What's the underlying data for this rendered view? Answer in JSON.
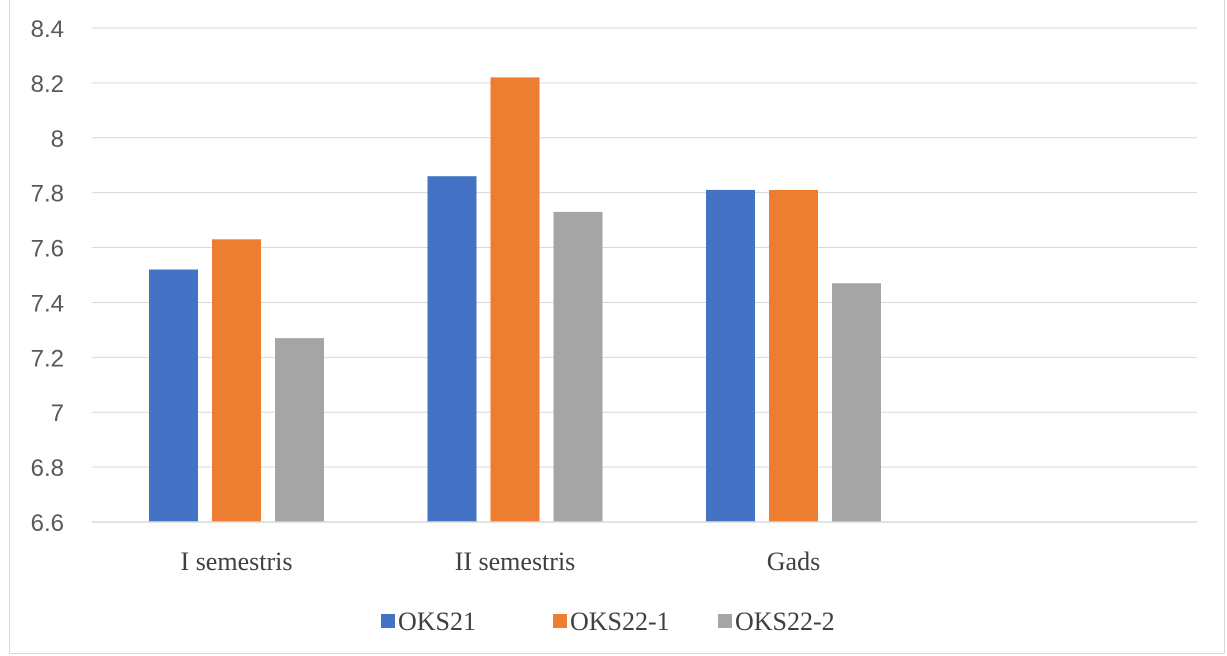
{
  "chart_data": {
    "type": "bar",
    "title": "",
    "xlabel": "",
    "ylabel": "",
    "categories": [
      "I semestris",
      "II semestris",
      "Gads"
    ],
    "series": [
      {
        "name": "OKS21",
        "values": [
          7.52,
          7.86,
          7.81
        ],
        "color": "#4472c4"
      },
      {
        "name": "OKS22-1",
        "values": [
          7.63,
          8.22,
          7.81
        ],
        "color": "#ed7d31"
      },
      {
        "name": "OKS22-2",
        "values": [
          7.27,
          7.73,
          7.47
        ],
        "color": "#a5a5a5"
      }
    ],
    "ylim": [
      6.6,
      8.4
    ],
    "yticks": [
      "6.6",
      "6.8",
      "7",
      "7.2",
      "7.4",
      "7.6",
      "7.8",
      "8",
      "8.2",
      "8.4"
    ],
    "grid": true,
    "legend_position": "bottom"
  }
}
